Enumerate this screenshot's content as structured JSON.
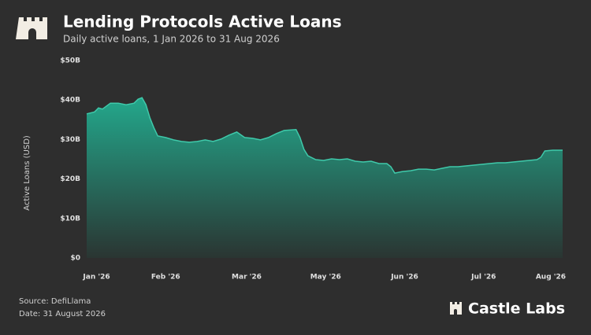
{
  "chart_data": {
    "type": "area",
    "title": "Lending Protocols Active Loans",
    "subtitle": "Daily active loans, 1 Jan 2026 to 31 Aug 2026",
    "y_label": "Active Loans (USD)",
    "source": "Source: DefiLlama",
    "date_note": "Date: 31 August 2026",
    "brand": "Castle Labs",
    "x": [
      0,
      4,
      6,
      8,
      12,
      16,
      20,
      24,
      26,
      28,
      30,
      32,
      34,
      36,
      40,
      44,
      48,
      52,
      56,
      60,
      64,
      68,
      72,
      76,
      80,
      84,
      88,
      92,
      96,
      100,
      106,
      108,
      110,
      112,
      116,
      120,
      124,
      128,
      132,
      136,
      140,
      144,
      148,
      152,
      154,
      156,
      160,
      164,
      168,
      172,
      176,
      180,
      184,
      188,
      192,
      196,
      200,
      204,
      208,
      212,
      216,
      220,
      224,
      228,
      230,
      232,
      236,
      240,
      241
    ],
    "series": [
      {
        "name": "Active Loans",
        "color": "#3fc9aa",
        "values": [
          36.5,
          37,
          38,
          37.7,
          39.2,
          39.2,
          38.8,
          39.2,
          40.2,
          40.6,
          38.8,
          35.5,
          33,
          30.9,
          30.5,
          29.9,
          29.5,
          29.3,
          29.5,
          29.9,
          29.5,
          30.1,
          31.1,
          31.9,
          30.5,
          30.3,
          29.9,
          30.5,
          31.5,
          32.3,
          32.5,
          30.5,
          27.5,
          25.9,
          24.9,
          24.7,
          25.1,
          24.9,
          25.1,
          24.5,
          24.3,
          24.5,
          23.9,
          23.9,
          23.1,
          21.5,
          21.9,
          22.1,
          22.5,
          22.5,
          22.3,
          22.7,
          23.1,
          23.1,
          23.3,
          23.5,
          23.7,
          23.9,
          24.1,
          24.1,
          24.3,
          24.5,
          24.7,
          24.9,
          25.5,
          27.1,
          27.3,
          27.3,
          27.3
        ]
      }
    ],
    "xlim": [
      0,
      241
    ],
    "xticks": [
      {
        "value": 5,
        "label": "Jan '26"
      },
      {
        "value": 40,
        "label": "Feb '26"
      },
      {
        "value": 81,
        "label": "Mar '26"
      },
      {
        "value": 121,
        "label": "May '26"
      },
      {
        "value": 161,
        "label": "Jun '26"
      },
      {
        "value": 201,
        "label": "Jul '26"
      },
      {
        "value": 235,
        "label": "Aug '26"
      }
    ],
    "ylim": [
      0,
      50
    ],
    "yticks": [
      {
        "value": 0,
        "label": "$0"
      },
      {
        "value": 10,
        "label": "$10B"
      },
      {
        "value": 20,
        "label": "$20B"
      },
      {
        "value": 30,
        "label": "$30B"
      },
      {
        "value": 40,
        "label": "$40B"
      },
      {
        "value": 50,
        "label": "$50B"
      }
    ],
    "grid": false
  }
}
